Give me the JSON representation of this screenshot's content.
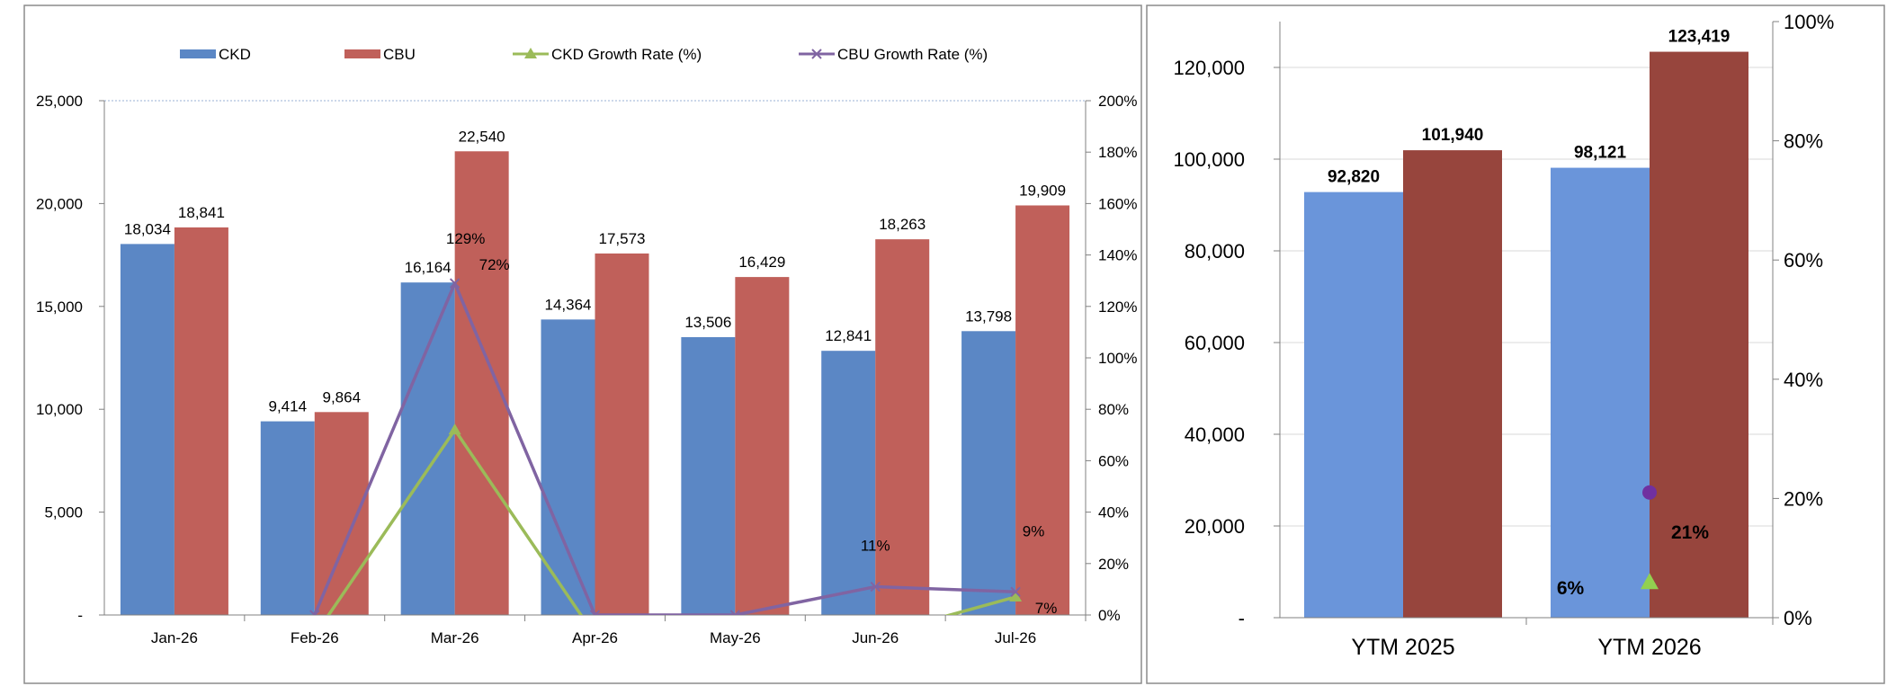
{
  "chart_data": [
    {
      "type": "bar",
      "categories": [
        "Jan-26",
        "Feb-26",
        "Mar-26",
        "Apr-26",
        "May-26",
        "Jun-26",
        "Jul-26"
      ],
      "series": [
        {
          "name": "CKD",
          "kind": "bar",
          "axis": "left",
          "color": "#5B87C5",
          "values": [
            18034,
            9414,
            16164,
            14364,
            13506,
            12841,
            13798
          ],
          "labels": [
            "18,034",
            "9,414",
            "16,164",
            "14,364",
            "13,506",
            "12,841",
            "13,798"
          ]
        },
        {
          "name": "CBU",
          "kind": "bar",
          "axis": "left",
          "color": "#C0605A",
          "values": [
            18841,
            9864,
            22540,
            17573,
            16429,
            18263,
            19909
          ],
          "labels": [
            "18,841",
            "9,864",
            "22,540",
            "17,573",
            "16,429",
            "18,263",
            "19,909"
          ]
        },
        {
          "name": "CKD Growth Rate (%)",
          "kind": "line",
          "axis": "right",
          "color": "#9BBB59",
          "marker": "triangle",
          "values": [
            null,
            -8,
            72,
            -8,
            null,
            -8,
            7
          ],
          "labels": [
            "",
            "",
            "72%",
            "",
            "",
            "",
            "7%"
          ]
        },
        {
          "name": "CBU Growth Rate (%)",
          "kind": "line",
          "axis": "right",
          "color": "#8064A2",
          "marker": "x",
          "values": [
            null,
            0,
            129,
            0,
            0,
            11,
            9
          ],
          "labels": [
            "",
            "",
            "129%",
            "",
            "",
            "11%",
            "9%"
          ]
        }
      ],
      "y_left": {
        "ylim": [
          0,
          25000
        ],
        "ticks": [
          "-",
          "5,000",
          "10,000",
          "15,000",
          "20,000",
          "25,000"
        ]
      },
      "y_right": {
        "ylim": [
          0,
          200
        ],
        "ticks": [
          "0%",
          "20%",
          "40%",
          "60%",
          "80%",
          "100%",
          "120%",
          "140%",
          "160%",
          "180%",
          "200%"
        ]
      },
      "grid": "top gridline only",
      "legend": "top"
    },
    {
      "type": "bar",
      "categories": [
        "YTM 2025",
        "YTM 2026"
      ],
      "series": [
        {
          "name": "CKD",
          "kind": "bar",
          "axis": "left",
          "color": "#6A95DA",
          "values": [
            92820,
            98121
          ],
          "labels": [
            "92,820",
            "98,121"
          ]
        },
        {
          "name": "CBU",
          "kind": "bar",
          "axis": "left",
          "color": "#97453D",
          "values": [
            101940,
            123419
          ],
          "labels": [
            "101,940",
            "123,419"
          ]
        }
      ],
      "markers": [
        {
          "category": "YTM 2026",
          "value": 21,
          "label": "21%",
          "color": "#7030A0",
          "shape": "circle"
        },
        {
          "category": "YTM 2026",
          "value": 6,
          "label": "6%",
          "color": "#92D050",
          "shape": "triangle"
        }
      ],
      "y_left": {
        "ylim": [
          0,
          130000
        ],
        "ticks": [
          "-",
          "20,000",
          "40,000",
          "60,000",
          "80,000",
          "100,000",
          "120,000"
        ]
      },
      "y_right": {
        "ylim": [
          0,
          100
        ],
        "ticks": [
          "0%",
          "20%",
          "40%",
          "60%",
          "80%",
          "100%"
        ]
      },
      "grid": "horizontal"
    }
  ]
}
